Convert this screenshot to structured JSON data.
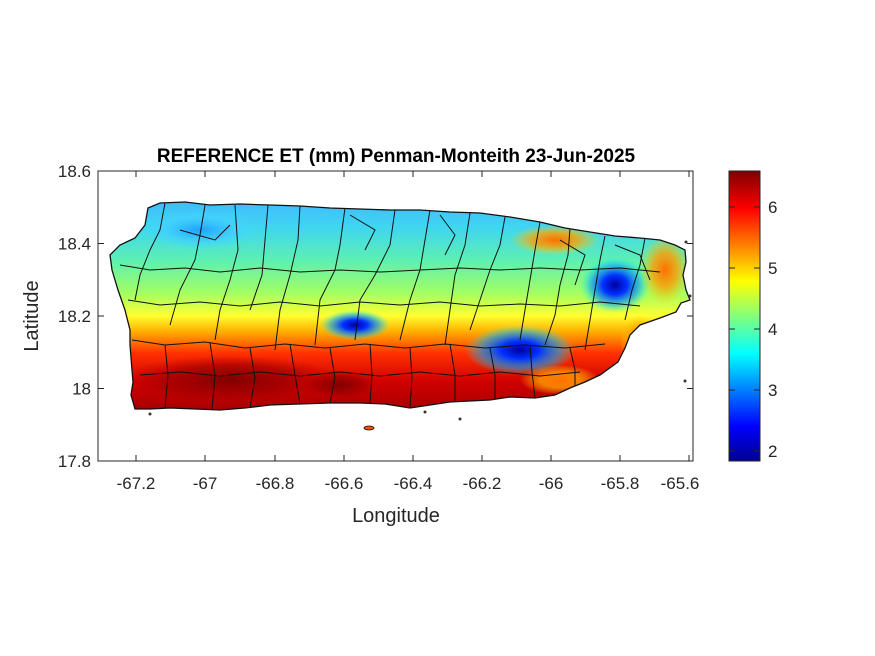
{
  "figure": {
    "title": "REFERENCE ET (mm) Penman-Monteith 23-Jun-2025",
    "xlabel": "Longitude",
    "ylabel": "Latitude"
  },
  "map": {
    "region": "Puerto Rico",
    "xlim": [
      -67.3,
      -65.58
    ],
    "ylim": [
      17.8,
      18.6
    ],
    "xticks": [
      "-67.2",
      "-67",
      "-66.8",
      "-66.6",
      "-66.4",
      "-66.2",
      "-66",
      "-65.8",
      "-65.6"
    ],
    "yticks": [
      "18.6",
      "18.4",
      "18.2",
      "18",
      "17.8"
    ],
    "field": "reference evapotranspiration",
    "units": "mm",
    "colormap": "jet"
  },
  "colorbar": {
    "range": [
      1.85,
      6.6
    ],
    "ticks": [
      "6",
      "5",
      "4",
      "3",
      "2"
    ]
  }
}
